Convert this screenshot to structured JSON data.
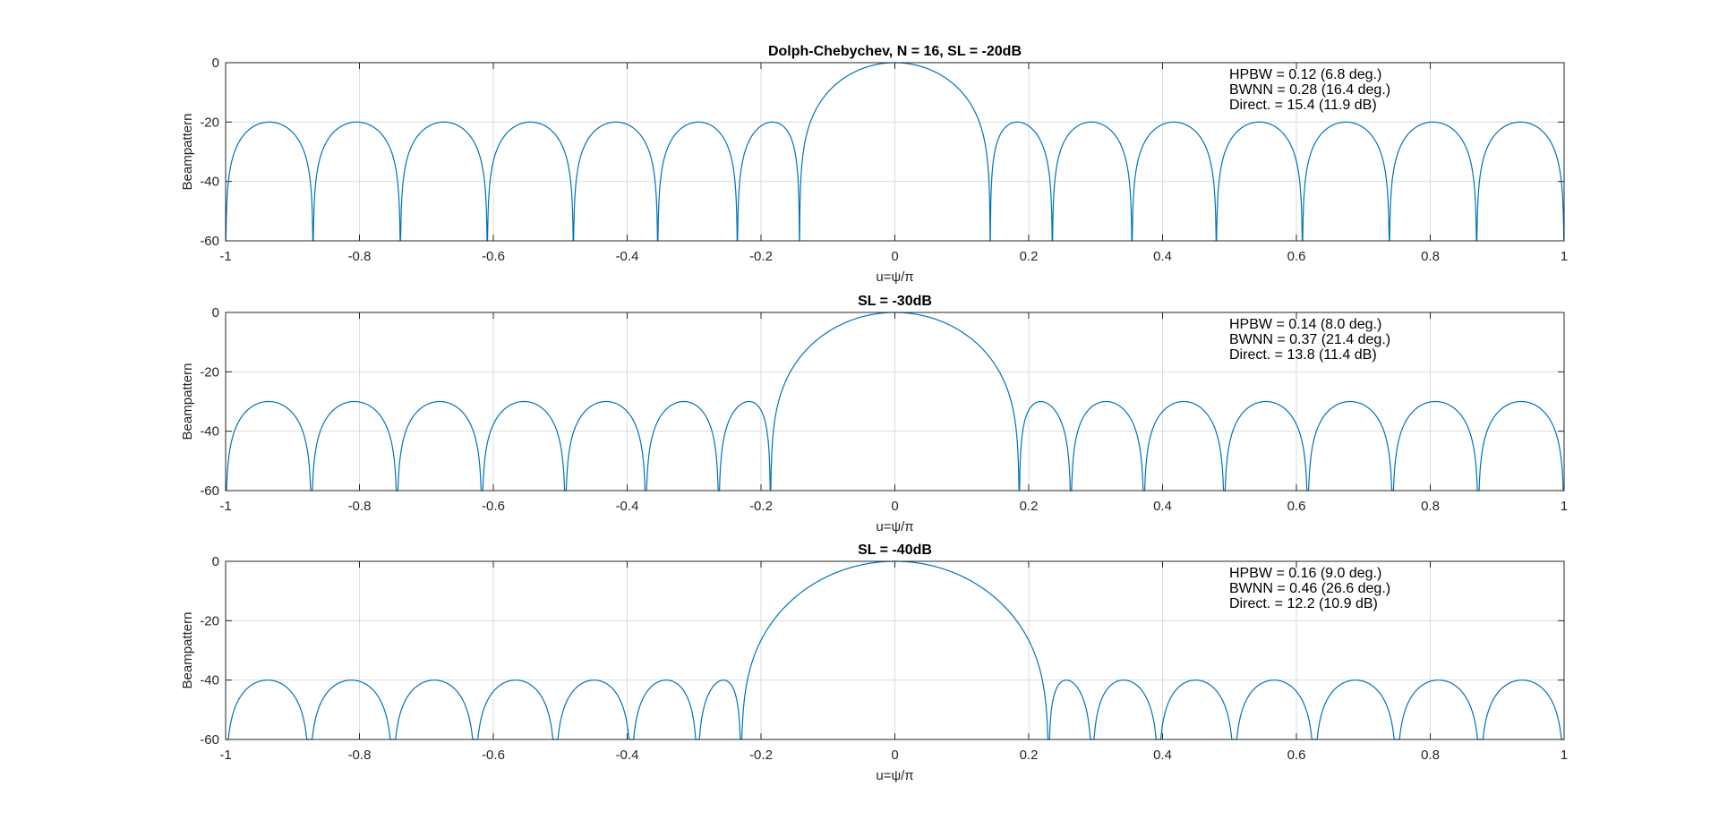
{
  "chart_data": [
    {
      "type": "line",
      "title": "Dolph-Chebychev, N = 16, SL = -20dB",
      "xlabel": "u=ψ/π",
      "ylabel": "Beampattern",
      "xlim": [
        -1,
        1
      ],
      "ylim": [
        -60,
        0
      ],
      "xticks": [
        "-1",
        "-0.8",
        "-0.6",
        "-0.4",
        "-0.2",
        "0",
        "0.2",
        "0.4",
        "0.6",
        "0.8",
        "1"
      ],
      "yticks": [
        "0",
        "-20",
        "-40",
        "-60"
      ],
      "grid": true,
      "series_color": "#0072BD",
      "elements": 16,
      "sidelobe_db": -20,
      "annotations": [
        "HPBW = 0.12 (6.8 deg.)",
        "BWNN = 0.28 (16.4 deg.)",
        "Direct. = 15.4 (11.9 dB)"
      ]
    },
    {
      "type": "line",
      "title": "SL = -30dB",
      "xlabel": "u=ψ/π",
      "ylabel": "Beampattern",
      "xlim": [
        -1,
        1
      ],
      "ylim": [
        -60,
        0
      ],
      "xticks": [
        "-1",
        "-0.8",
        "-0.6",
        "-0.4",
        "-0.2",
        "0",
        "0.2",
        "0.4",
        "0.6",
        "0.8",
        "1"
      ],
      "yticks": [
        "0",
        "-20",
        "-40",
        "-60"
      ],
      "grid": true,
      "series_color": "#0072BD",
      "elements": 16,
      "sidelobe_db": -30,
      "annotations": [
        "HPBW = 0.14 (8.0 deg.)",
        "BWNN = 0.37 (21.4 deg.)",
        "Direct. = 13.8 (11.4 dB)"
      ]
    },
    {
      "type": "line",
      "title": "SL = -40dB",
      "xlabel": "u=ψ/π",
      "ylabel": "Beampattern",
      "xlim": [
        -1,
        1
      ],
      "ylim": [
        -60,
        0
      ],
      "xticks": [
        "-1",
        "-0.8",
        "-0.6",
        "-0.4",
        "-0.2",
        "0",
        "0.2",
        "0.4",
        "0.6",
        "0.8",
        "1"
      ],
      "yticks": [
        "0",
        "-20",
        "-40",
        "-60"
      ],
      "grid": true,
      "series_color": "#0072BD",
      "elements": 16,
      "sidelobe_db": -40,
      "annotations": [
        "HPBW = 0.16 (9.0 deg.)",
        "BWNN = 0.46 (26.6 deg.)",
        "Direct. = 12.2 (10.9 dB)"
      ]
    }
  ]
}
